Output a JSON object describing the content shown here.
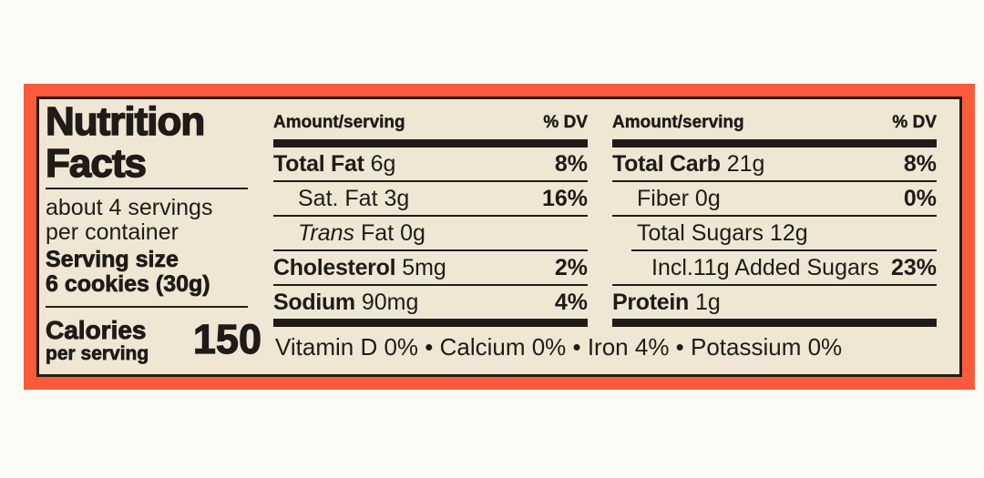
{
  "colors": {
    "border_orange": "#F95B3B",
    "panel_cream": "#EFE7D4",
    "ink_black": "#211B18",
    "page_background": "#FCFBF6"
  },
  "left_panel": {
    "title_line1": "Nutrition",
    "title_line2": "Facts",
    "servings_line1": "about 4 servings",
    "servings_line2": "per container",
    "serving_size_label": "Serving size",
    "serving_size_value": "6 cookies (30g)",
    "calories_label": "Calories",
    "calories_sublabel": "per serving",
    "calories_value": "150"
  },
  "columns": [
    {
      "header": {
        "amount": "Amount/serving",
        "dv": "% DV"
      },
      "rows": [
        {
          "name": "Total Fat",
          "amount": "6g",
          "dv": "8%"
        },
        {
          "name": "Sat. Fat",
          "amount": "3g",
          "dv": "16%"
        },
        {
          "name_italic": "Trans",
          "name": "Fat",
          "amount": "0g",
          "dv": ""
        },
        {
          "name": "Cholesterol",
          "amount": "5mg",
          "dv": "2%"
        },
        {
          "name": "Sodium",
          "amount": "90mg",
          "dv": "4%"
        }
      ]
    },
    {
      "header": {
        "amount": "Amount/serving",
        "dv": "% DV"
      },
      "rows": [
        {
          "name": "Total Carb",
          "amount": "21g",
          "dv": "8%"
        },
        {
          "name": "Fiber",
          "amount": "0g",
          "dv": "0%"
        },
        {
          "name": "Total Sugars",
          "amount": "12g",
          "dv": ""
        },
        {
          "name": "Incl.11g Added Sugars",
          "amount": "",
          "dv": "23%"
        },
        {
          "name": "Protein",
          "amount": "1g",
          "dv": ""
        }
      ]
    }
  ],
  "footer": {
    "micronutrients": "Vitamin D 0% • Calcium 0% • Iron 4% • Potassium 0%"
  }
}
